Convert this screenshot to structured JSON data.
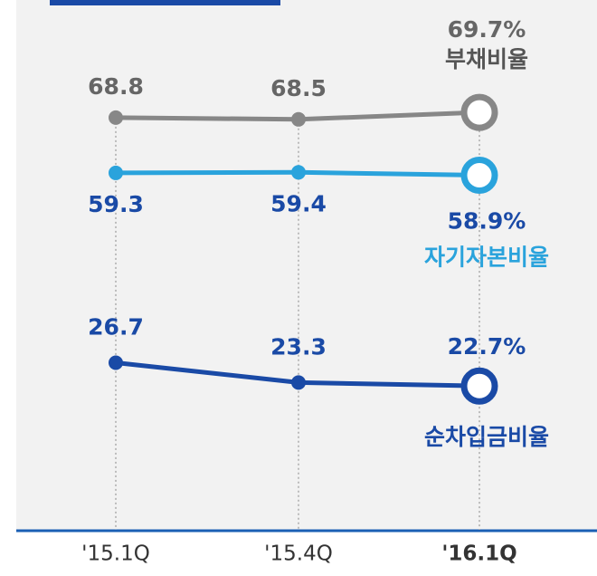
{
  "chart_data": {
    "type": "line",
    "categories": [
      "'15.1Q",
      "'15.4Q",
      "'16.1Q"
    ],
    "series": [
      {
        "name": "부채비율",
        "color": "#878787",
        "values": [
          68.8,
          68.5,
          69.7
        ],
        "value_labels": [
          "68.8",
          "68.5",
          "69.7%"
        ]
      },
      {
        "name": "자기자본비율",
        "color": "#2aa3dc",
        "values": [
          59.3,
          59.4,
          58.9
        ],
        "value_labels": [
          "59.3",
          "59.4",
          "58.9%"
        ]
      },
      {
        "name": "순차입금비율",
        "color": "#1a4aa6",
        "values": [
          26.7,
          23.3,
          22.7
        ],
        "value_labels": [
          "26.7",
          "23.3",
          "22.7%"
        ]
      }
    ],
    "ylim": [
      -2,
      89
    ]
  }
}
